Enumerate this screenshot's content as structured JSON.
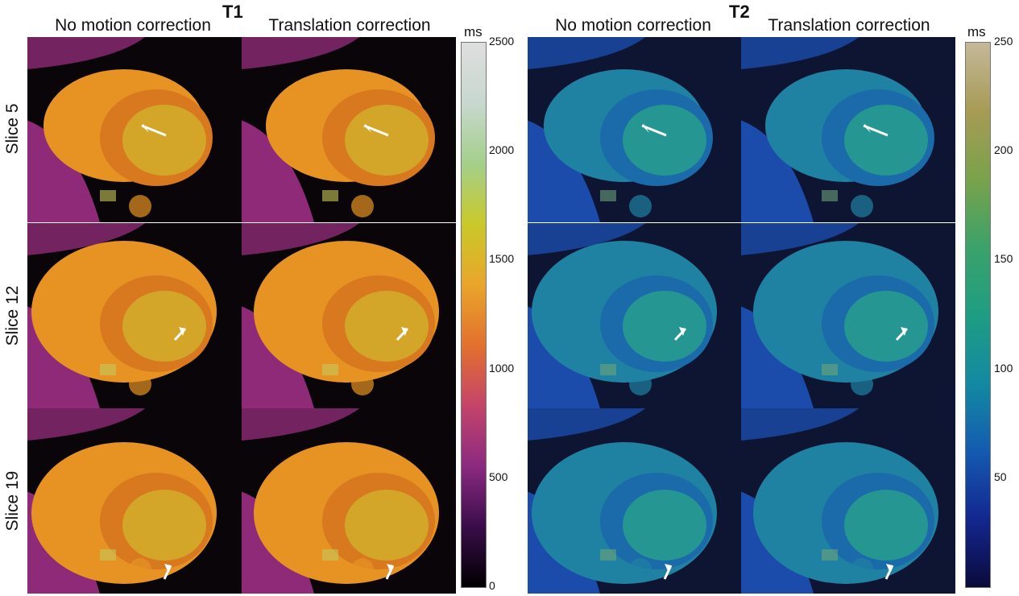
{
  "panels": [
    {
      "id": "t1",
      "title": "T1",
      "columns": [
        "No motion correction",
        "Translation correction"
      ],
      "colorbar": {
        "unit": "ms",
        "ticks": [
          "2500",
          "2000",
          "1500",
          "1000",
          "500",
          "0"
        ],
        "colors": [
          "#000000",
          "#3a0d4a",
          "#8b2a80",
          "#c4446a",
          "#e2712e",
          "#e9a52b",
          "#c9c92a",
          "#a4cf8a",
          "#c8d8cf",
          "#dedede"
        ]
      },
      "palette": {
        "bg": "#0a0508",
        "outer": "#8f2a78",
        "body": "#e69324",
        "core": "#d2b22d",
        "ring": "#d8781f",
        "speck": "#c7c85a"
      }
    },
    {
      "id": "t2",
      "title": "T2",
      "columns": [
        "No motion correction",
        "Translation correction"
      ],
      "colorbar": {
        "unit": "ms",
        "ticks": [
          "250",
          "200",
          "150",
          "100",
          "50"
        ],
        "colors": [
          "#0a0a3a",
          "#13278f",
          "#145bb0",
          "#138aa2",
          "#1f9d82",
          "#3ba26a",
          "#7aa24b",
          "#a79b55",
          "#c4b89a"
        ]
      },
      "palette": {
        "bg": "#0e1533",
        "outer": "#1c4cab",
        "body": "#1f82a2",
        "core": "#28a18b",
        "ring": "#1b6aaa",
        "speck": "#6ea27a"
      }
    }
  ],
  "rows": [
    "Slice 5",
    "Slice 12",
    "Slice 19"
  ]
}
